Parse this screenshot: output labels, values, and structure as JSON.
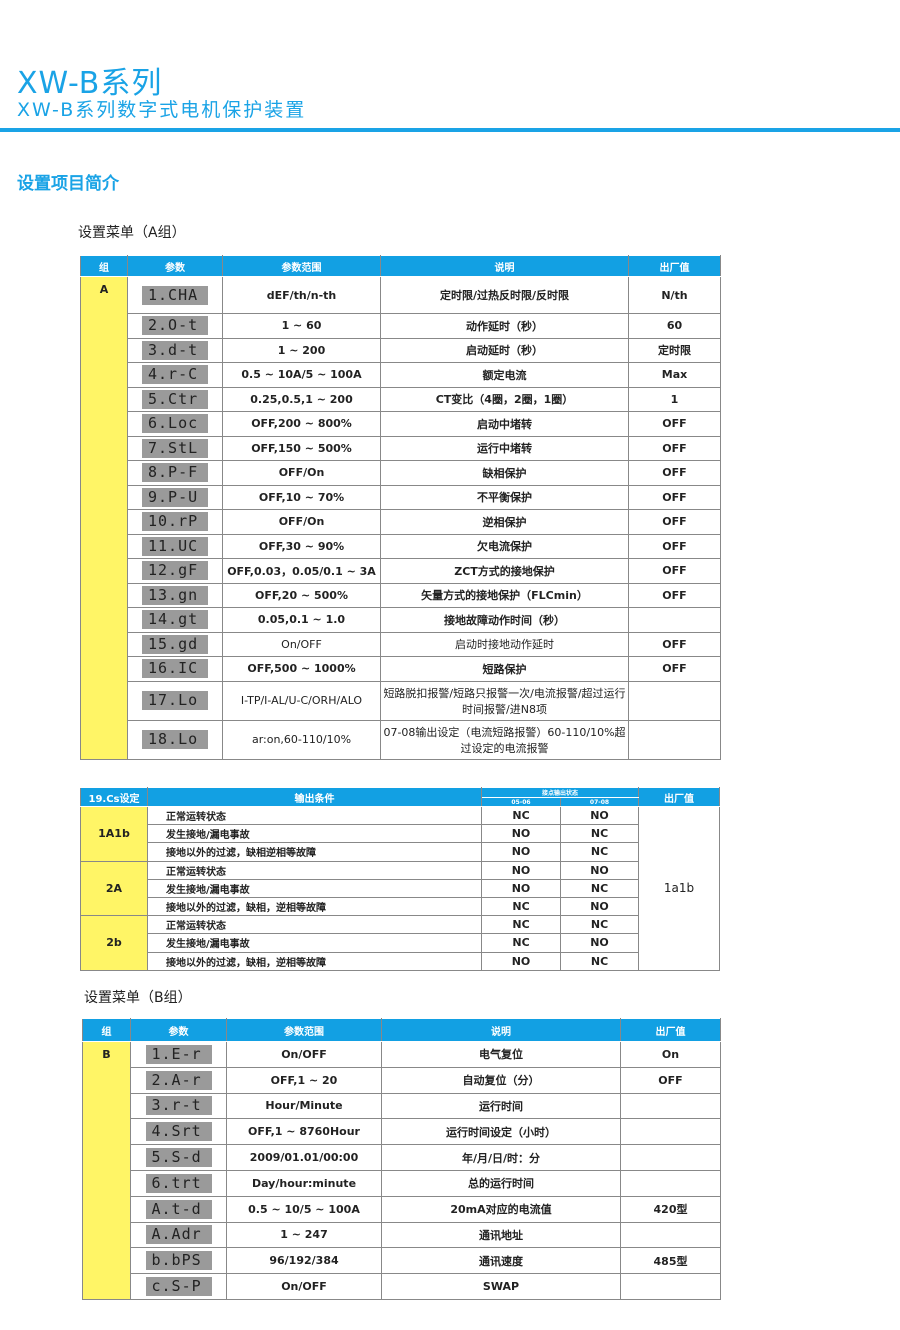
{
  "header": {
    "title": "XW-B系列",
    "subtitle": "XW-B系列数字式电机保护装置",
    "section": "设置项目简介"
  },
  "tableA": {
    "caption": "设置菜单（A组）",
    "columns": [
      "组",
      "参数",
      "参数范围",
      "说明",
      "出厂值"
    ],
    "group": "A",
    "rows": [
      {
        "code": "1.CHA",
        "range": "dEF/th/n-th",
        "desc": "定时限/过热反时限/反时限",
        "default": "N/th"
      },
      {
        "code": "2.O-t",
        "range": "1 ~ 60",
        "desc": "动作延时（秒）",
        "default": "60"
      },
      {
        "code": "3.d-t",
        "range": "1 ~ 200",
        "desc": "启动延时（秒）",
        "default": "定时限"
      },
      {
        "code": "4.r-C",
        "range": "0.5 ~ 10A/5 ~ 100A",
        "desc": "额定电流",
        "default": "Max"
      },
      {
        "code": "5.Ctr",
        "range": "0.25,0.5,1 ~ 200",
        "desc": "CT变比（4圈，2圈，1圈）",
        "default": "1"
      },
      {
        "code": "6.Loc",
        "range": "OFF,200 ~ 800%",
        "desc": "启动中堵转",
        "default": "OFF"
      },
      {
        "code": "7.StL",
        "range": "OFF,150 ~ 500%",
        "desc": "运行中堵转",
        "default": "OFF"
      },
      {
        "code": "8.P-F",
        "range": "OFF/On",
        "desc": "缺相保护",
        "default": "OFF"
      },
      {
        "code": "9.P-U",
        "range": "OFF,10 ~ 70%",
        "desc": "不平衡保护",
        "default": "OFF"
      },
      {
        "code": "10.rP",
        "range": "OFF/On",
        "desc": "逆相保护",
        "default": "OFF"
      },
      {
        "code": "11.UC",
        "range": "OFF,30 ~ 90%",
        "desc": "欠电流保护",
        "default": "OFF"
      },
      {
        "code": "12.gF",
        "range": "OFF,0.03，0.05/0.1 ~ 3A",
        "desc": "ZCT方式的接地保护",
        "default": "OFF"
      },
      {
        "code": "13.gn",
        "range": "OFF,20 ~ 500%",
        "desc": "矢量方式的接地保护（FLCmin）",
        "default": "OFF"
      },
      {
        "code": "14.gt",
        "range": "0.05,0.1 ~ 1.0",
        "desc": "接地故障动作时间（秒）",
        "default": ""
      },
      {
        "code": "15.gd",
        "range": "On/OFF",
        "desc": "启动时接地动作延时",
        "default": "OFF"
      },
      {
        "code": "16.IC",
        "range": "OFF,500 ~ 1000%",
        "desc": "短路保护",
        "default": "OFF"
      },
      {
        "code": "17.Lo",
        "range": "I-TP/I-AL/U-C/ORH/ALO",
        "desc": "短路脱扣报警/短路只报警一次/电流报警/超过运行时间报警/进N8项",
        "default": ""
      },
      {
        "code": "18.Lo",
        "range": "ar:on,60-110/10%",
        "desc": "07-08输出设定（电流短路报警）60-110/10%超过设定的电流报警",
        "default": ""
      }
    ]
  },
  "tableCs": {
    "columns": {
      "setting": "19.Cs设定",
      "condition": "输出条件",
      "contact": "接点输出状态",
      "c1": "05-06",
      "c2": "07-08",
      "default": "出厂值"
    },
    "default_value": "1a1b",
    "groups": [
      {
        "name": "1A1b",
        "rows": [
          {
            "cond": "正常运转状态",
            "a": "NC",
            "b": "NO"
          },
          {
            "cond": "发生接地/漏电事故",
            "a": "NO",
            "b": "NC"
          },
          {
            "cond": "接地以外的过滤，缺相逆相等故障",
            "a": "NO",
            "b": "NC"
          }
        ]
      },
      {
        "name": "2A",
        "rows": [
          {
            "cond": "正常运转状态",
            "a": "NO",
            "b": "NO"
          },
          {
            "cond": "发生接地/漏电事故",
            "a": "NO",
            "b": "NC"
          },
          {
            "cond": "接地以外的过滤，缺相，逆相等故障",
            "a": "NC",
            "b": "NO"
          }
        ]
      },
      {
        "name": "2b",
        "rows": [
          {
            "cond": "正常运转状态",
            "a": "NC",
            "b": "NC"
          },
          {
            "cond": "发生接地/漏电事故",
            "a": "NC",
            "b": "NO"
          },
          {
            "cond": "接地以外的过滤，缺相，逆相等故障",
            "a": "NO",
            "b": "NC"
          }
        ]
      }
    ]
  },
  "tableB": {
    "caption": "设置菜单（B组）",
    "columns": [
      "组",
      "参数",
      "参数范围",
      "说明",
      "出厂值"
    ],
    "group": "B",
    "rows": [
      {
        "code": "1.E-r",
        "range": "On/OFF",
        "desc": "电气复位",
        "default": "On"
      },
      {
        "code": "2.A-r",
        "range": "OFF,1 ~ 20",
        "desc": "自动复位（分）",
        "default": "OFF"
      },
      {
        "code": "3.r-t",
        "range": "Hour/Minute",
        "desc": "运行时间",
        "default": ""
      },
      {
        "code": "4.Srt",
        "range": "OFF,1 ~ 8760Hour",
        "desc": "运行时间设定（小时）",
        "default": ""
      },
      {
        "code": "5.S-d",
        "range": "2009/01.01/00:00",
        "desc": "年/月/日/时：分",
        "default": ""
      },
      {
        "code": "6.trt",
        "range": "Day/hour:minute",
        "desc": "总的运行时间",
        "default": ""
      },
      {
        "code": "A.t-d",
        "range": "0.5 ~ 10/5 ~ 100A",
        "desc": "20mA对应的电流值",
        "default": "420型"
      },
      {
        "code": "A.Adr",
        "range": "1 ~ 247",
        "desc": "通讯地址",
        "default": ""
      },
      {
        "code": "b.bPS",
        "range": "96/192/384",
        "desc": "通讯速度",
        "default": "485型"
      },
      {
        "code": "c.S-P",
        "range": "On/OFF",
        "desc": "SWAP",
        "default": ""
      }
    ]
  },
  "colors": {
    "accent": "#1aa3e6",
    "header_bg": "#12a0e3",
    "group_bg": "#fff566",
    "lcd_bg": "#9a9a9a"
  }
}
